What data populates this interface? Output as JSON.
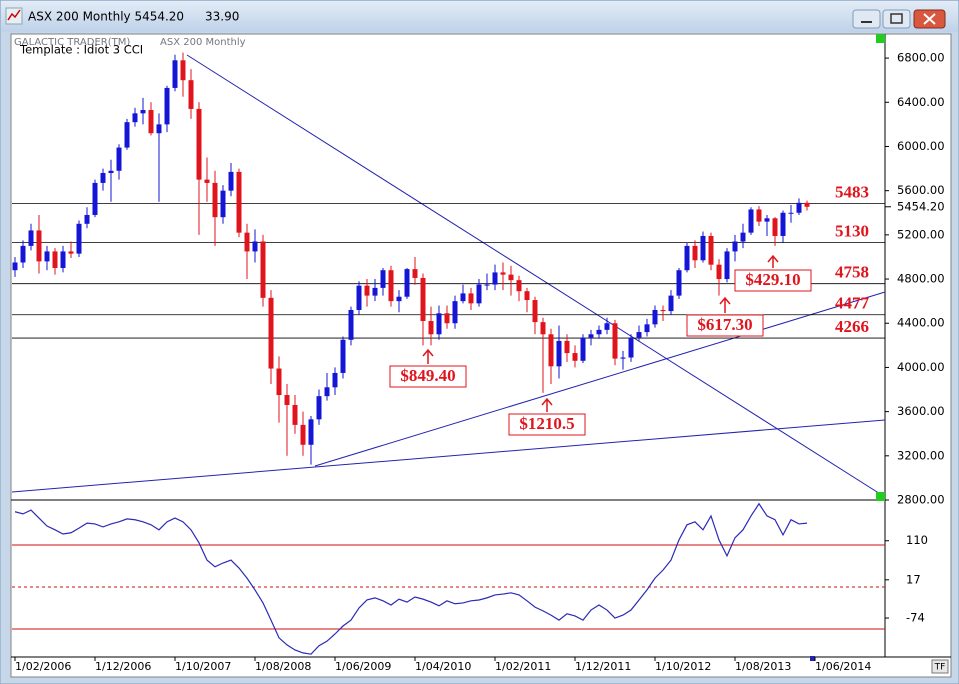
{
  "window": {
    "title": "ASX 200 Monthly 5454.20",
    "change": "33.90",
    "button": "TF"
  },
  "chart_data": [
    {
      "type": "candlestick",
      "source": "GALACTIC TRADER(TM)",
      "title": "ASX 200 Monthly",
      "subtitle": "Template : Idiot 3 CCI",
      "categories": [
        "1/02/2006",
        null,
        null,
        null,
        null,
        null,
        null,
        null,
        null,
        null,
        "1/12/2006",
        null,
        null,
        null,
        null,
        null,
        null,
        null,
        null,
        null,
        "1/10/2007",
        null,
        null,
        null,
        null,
        null,
        null,
        null,
        null,
        null,
        "1/08/2008",
        null,
        null,
        null,
        null,
        null,
        null,
        null,
        null,
        null,
        "1/06/2009",
        null,
        null,
        null,
        null,
        null,
        null,
        null,
        null,
        null,
        "1/04/2010",
        null,
        null,
        null,
        null,
        null,
        null,
        null,
        null,
        null,
        "1/02/2011",
        null,
        null,
        null,
        null,
        null,
        null,
        null,
        null,
        null,
        "1/12/2011",
        null,
        null,
        null,
        null,
        null,
        null,
        null,
        null,
        null,
        "1/10/2012",
        null,
        null,
        null,
        null,
        null,
        null,
        null,
        null,
        null,
        "1/08/2013",
        null,
        null,
        null,
        null,
        null,
        null,
        null,
        null,
        null,
        "1/06/2014"
      ],
      "open": [
        4880,
        4950,
        5100,
        5240,
        4960,
        5050,
        4900,
        5050,
        5030,
        5300,
        5380,
        5670,
        5760,
        5780,
        5990,
        6220,
        6300,
        6330,
        6120,
        6200,
        6530,
        6780,
        6600,
        6340,
        5700,
        5670,
        5360,
        5600,
        5770,
        5220,
        5050,
        5140,
        4630,
        3990,
        3750,
        3660,
        3480,
        3300,
        3530,
        3740,
        3820,
        3950,
        4250,
        4520,
        4740,
        4650,
        4720,
        4880,
        4600,
        4640,
        4890,
        4810,
        4420,
        4300,
        4490,
        4400,
        4600,
        4670,
        4580,
        4750,
        4750,
        4860,
        4840,
        4790,
        4690,
        4610,
        4410,
        4300,
        4010,
        4240,
        4130,
        4060,
        4270,
        4300,
        4340,
        4400,
        4080,
        4090,
        4270,
        4320,
        4390,
        4520,
        4510,
        4650,
        4880,
        5100,
        4970,
        5190,
        4930,
        4800,
        5050,
        5140,
        5220,
        5430,
        5320,
        5350,
        5190,
        5400,
        5400,
        5490,
        null
      ],
      "high": [
        5000,
        5150,
        5300,
        5380,
        5100,
        5080,
        5100,
        5140,
        5330,
        5450,
        5700,
        5800,
        5880,
        6020,
        6250,
        6350,
        6440,
        6400,
        6300,
        6550,
        6830,
        6850,
        6700,
        6400,
        5900,
        5780,
        5650,
        5850,
        5800,
        5300,
        5250,
        5200,
        4700,
        4100,
        3850,
        3750,
        3600,
        3560,
        3800,
        3950,
        4000,
        4280,
        4550,
        4780,
        4800,
        4800,
        4900,
        4920,
        4700,
        4900,
        5000,
        4850,
        4550,
        4560,
        4560,
        4650,
        4750,
        4720,
        4800,
        4850,
        4930,
        4950,
        4920,
        4830,
        4720,
        4640,
        4450,
        4350,
        4380,
        4300,
        4200,
        4300,
        4340,
        4380,
        4450,
        4430,
        4150,
        4300,
        4380,
        4440,
        4560,
        4560,
        4700,
        4900,
        5130,
        5150,
        5230,
        5220,
        4980,
        5080,
        5200,
        5300,
        5450,
        5460,
        5380,
        5360,
        5420,
        5470,
        5530,
        5510,
        null
      ],
      "low": [
        4820,
        4900,
        5060,
        4850,
        4880,
        4840,
        4860,
        4990,
        5000,
        5260,
        5360,
        5600,
        5500,
        5700,
        5970,
        6180,
        6200,
        6100,
        5500,
        6130,
        6500,
        6450,
        6250,
        5200,
        5500,
        5100,
        5300,
        5550,
        5180,
        4800,
        4950,
        4550,
        3850,
        3500,
        3200,
        3400,
        3200,
        3120,
        3480,
        3700,
        3750,
        3900,
        4200,
        4480,
        4550,
        4600,
        4650,
        4550,
        4500,
        4620,
        4750,
        4200,
        4200,
        4250,
        4350,
        4350,
        4580,
        4520,
        4550,
        4700,
        4700,
        4700,
        4650,
        4600,
        4500,
        4300,
        3770,
        3850,
        3900,
        4050,
        4000,
        4040,
        4200,
        4260,
        4300,
        4020,
        3980,
        4050,
        4240,
        4280,
        4360,
        4420,
        4480,
        4620,
        4860,
        4900,
        4950,
        4880,
        4650,
        4770,
        4960,
        5080,
        5200,
        5280,
        5190,
        5100,
        5130,
        5310,
        5380,
        5420,
        null
      ],
      "close": [
        4950,
        5100,
        5240,
        4960,
        5050,
        4900,
        5050,
        5030,
        5300,
        5380,
        5670,
        5760,
        5780,
        5990,
        6220,
        6300,
        6330,
        6120,
        6200,
        6530,
        6780,
        6600,
        6340,
        5700,
        5670,
        5360,
        5600,
        5770,
        5220,
        5050,
        5140,
        4630,
        3990,
        3750,
        3660,
        3480,
        3300,
        3530,
        3740,
        3820,
        3950,
        4250,
        4520,
        4740,
        4650,
        4720,
        4880,
        4600,
        4640,
        4890,
        4810,
        4420,
        4300,
        4490,
        4400,
        4600,
        4670,
        4580,
        4750,
        4750,
        4860,
        4840,
        4790,
        4690,
        4610,
        4410,
        4300,
        4010,
        4240,
        4130,
        4060,
        4270,
        4300,
        4340,
        4400,
        4080,
        4090,
        4270,
        4320,
        4390,
        4520,
        4510,
        4650,
        4880,
        5100,
        4970,
        5190,
        4930,
        4800,
        5050,
        5140,
        5220,
        5430,
        5320,
        5350,
        5190,
        5400,
        5400,
        5490,
        5454.2,
        null
      ],
      "up_color": "#1515d6",
      "down_color": "#e0141c",
      "ylim": [
        2800,
        7000
      ],
      "yticks": [
        {
          "value": 2800,
          "label": "2800.00"
        },
        {
          "value": 3200,
          "label": "3200.00"
        },
        {
          "value": 3600,
          "label": "3600.00"
        },
        {
          "value": 4000,
          "label": "4000.00"
        },
        {
          "value": 4400,
          "label": "4400.00"
        },
        {
          "value": 4800,
          "label": "4800.00"
        },
        {
          "value": 5200,
          "label": "5200.00"
        },
        {
          "value": 5600,
          "label": "5600.00"
        },
        {
          "value": 6000,
          "label": "6000.00"
        },
        {
          "value": 6400,
          "label": "6400.00"
        },
        {
          "value": 6800,
          "label": "6800.00"
        }
      ],
      "price_label": {
        "value": 5454.2,
        "label": "5454.20"
      },
      "levels": [
        5483,
        5130,
        4758,
        4477,
        4266
      ],
      "level_color": "#e0141c",
      "annotations": [
        "$849.40",
        "$1210.5",
        "$617.30",
        "$429.10"
      ],
      "grid": false
    },
    {
      "type": "line",
      "values": [
        179,
        174,
        183,
        164,
        145,
        136,
        126,
        129,
        140,
        152,
        150,
        143,
        150,
        155,
        162,
        160,
        155,
        148,
        136,
        155,
        164,
        155,
        136,
        105,
        64,
        48,
        57,
        64,
        45,
        21,
        -7,
        -38,
        -79,
        -121,
        -138,
        -150,
        -157,
        -160,
        -140,
        -129,
        -112,
        -93,
        -79,
        -50,
        -31,
        -26,
        -33,
        -43,
        -29,
        -36,
        -24,
        -29,
        -36,
        -45,
        -33,
        -40,
        -38,
        -33,
        -31,
        -26,
        -19,
        -17,
        -14,
        -19,
        -33,
        -48,
        -57,
        -67,
        -79,
        -64,
        -69,
        -79,
        -55,
        -43,
        -55,
        -74,
        -67,
        -55,
        -31,
        -7,
        21,
        40,
        64,
        112,
        148,
        155,
        136,
        169,
        112,
        74,
        117,
        136,
        169,
        198,
        169,
        160,
        124,
        160,
        150,
        152,
        null
      ],
      "color": "#2a2ab8",
      "ylim": [
        -162,
        207
      ],
      "yticks": [
        110,
        17,
        -74
      ],
      "reference_lines": [
        100,
        0,
        -100
      ],
      "reference_color": "#cc1111",
      "grid": false
    }
  ]
}
